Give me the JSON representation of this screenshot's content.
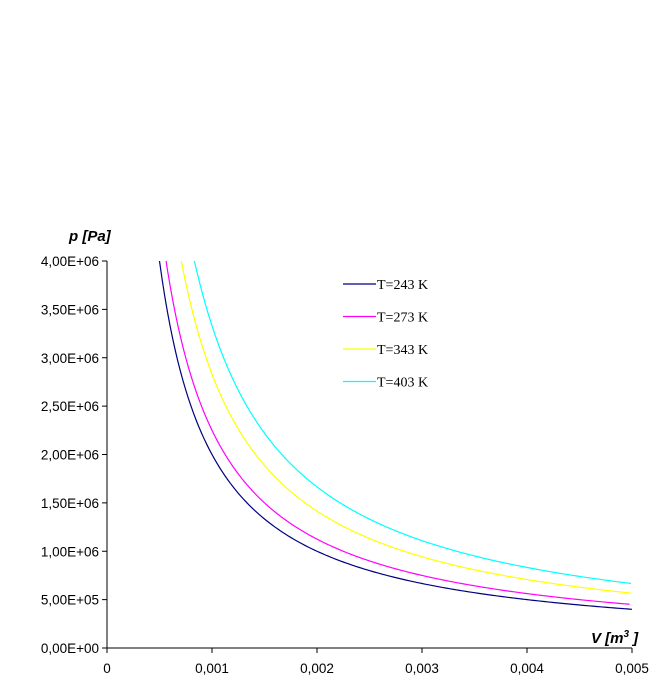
{
  "chart_data": {
    "type": "line",
    "title": "",
    "ylabel": "p [Pa]",
    "xlabel_base": "V [m",
    "xlabel_sup": "3",
    "xlabel_tail": "]",
    "xlim": [
      0,
      0.005
    ],
    "ylim": [
      0,
      4000000
    ],
    "xticks": [
      0,
      0.001,
      0.002,
      0.003,
      0.004,
      0.005
    ],
    "xtick_labels": [
      "0",
      "0,001",
      "0,002",
      "0,003",
      "0,004",
      "0,005"
    ],
    "yticks": [
      0,
      500000,
      1000000,
      1500000,
      2000000,
      2500000,
      3000000,
      3500000,
      4000000
    ],
    "ytick_labels": [
      "0,00E+00",
      "5,00E+05",
      "1,00E+06",
      "1,50E+06",
      "2,00E+06",
      "2,50E+06",
      "3,00E+06",
      "3,50E+06",
      "4,00E+06"
    ],
    "grid": false,
    "legend_position": "top-right",
    "x_start": 0.0005,
    "x_end": 0.005,
    "x_step": 0.0001,
    "series": [
      {
        "name": "T=243 K",
        "constant_pV": 2000,
        "color": "#000080"
      },
      {
        "name": "T=273 K",
        "constant_pV": 2250,
        "color": "#ff00ff"
      },
      {
        "name": "T=343 K",
        "constant_pV": 2830,
        "color": "#ffff00"
      },
      {
        "name": "T=403 K",
        "constant_pV": 3330,
        "color": "#00ffff"
      }
    ]
  }
}
